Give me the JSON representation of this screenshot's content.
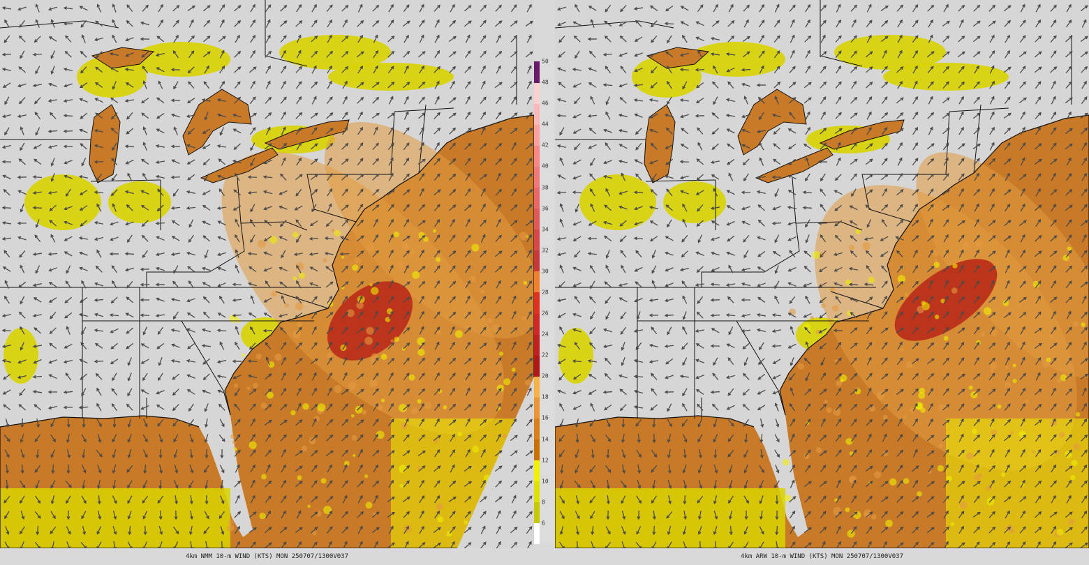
{
  "panels": [
    {
      "id": "left",
      "model": "4km NMM",
      "caption": "4km NMM 10-m WIND (KTS) MON 250707/1300V037"
    },
    {
      "id": "right",
      "model": "4km ARW",
      "caption": "4km ARW 10-m WIND (KTS) MON 250707/1300V037"
    }
  ],
  "colorbar": {
    "unit": "KTS",
    "labels": [
      "6",
      "8",
      "10",
      "12",
      "14",
      "16",
      "18",
      "20",
      "22",
      "24",
      "26",
      "28",
      "30",
      "32",
      "34",
      "36",
      "38",
      "40",
      "42",
      "44",
      "46",
      "48",
      "50"
    ],
    "colors": [
      "#ffffff",
      "#c8c800",
      "#e0e000",
      "#f0f000",
      "#c87000",
      "#d88020",
      "#e89638",
      "#f8b048",
      "#b01818",
      "#c02020",
      "#d02828",
      "#e03020",
      "#f08030",
      "#c83838",
      "#d84848",
      "#e05858",
      "#e86868",
      "#f07878",
      "#f88888",
      "#fca0a0",
      "#fcb8b8",
      "#fcd0d0",
      "#6a1a6a"
    ]
  },
  "map_colors": {
    "background": "#d6d6d6",
    "land_bg": "#d8d8d8",
    "ocean_main": "#c87a28",
    "ocean_light": "#e29a40",
    "yellow": "#d8d400",
    "yellow_bright": "#eeee00",
    "red": "#b82a18",
    "border": "#111111",
    "arrow": "#4a4a4a"
  },
  "legend_icon": "wind-arrow-icon"
}
